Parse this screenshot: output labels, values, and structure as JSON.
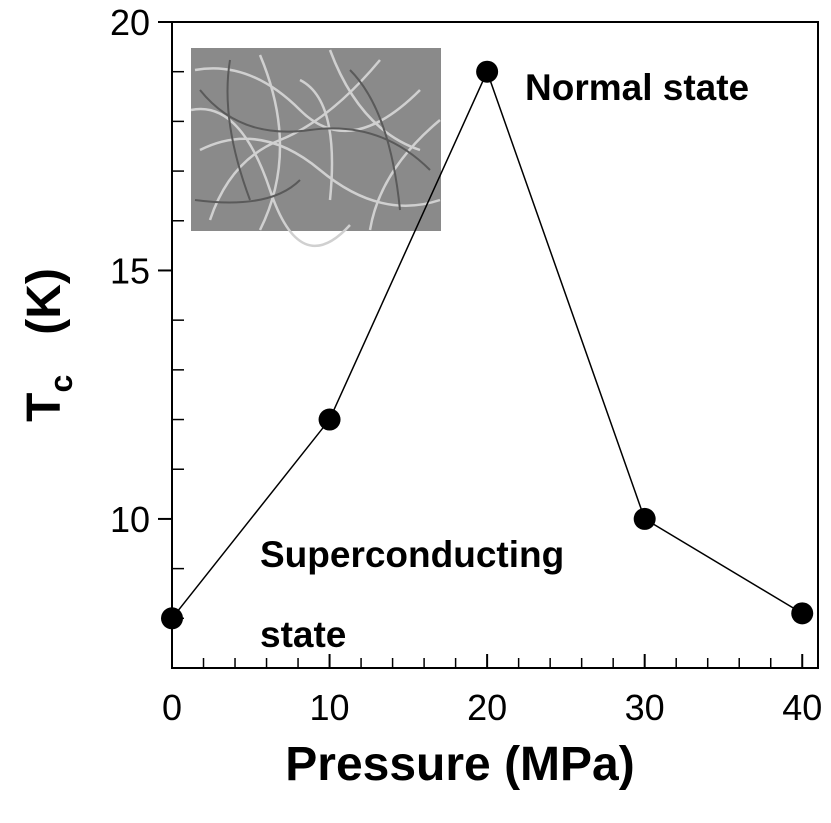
{
  "chart_data": {
    "type": "line",
    "x": [
      0,
      10,
      20,
      30,
      40
    ],
    "values": [
      8,
      12,
      19,
      10,
      8.1
    ],
    "color": "#000000",
    "xlim": [
      0,
      41
    ],
    "xticks": [
      0,
      10,
      20,
      30,
      40
    ],
    "xminorticks": [
      2,
      4,
      6,
      8,
      12,
      14,
      16,
      18,
      22,
      24,
      26,
      28,
      32,
      34,
      36,
      38
    ],
    "ylim": [
      7,
      20
    ],
    "yticks": [
      10,
      15,
      20
    ],
    "yminorticks": [
      8,
      9,
      11,
      12,
      13,
      14,
      16,
      17,
      18,
      19
    ],
    "xlabel": "Pressure (MPa)",
    "ylabel": {
      "main": "T",
      "sub": "c",
      "unit": "(K)"
    },
    "annotations": {
      "normal": "Normal state",
      "superconducting": [
        "Superconducting",
        "state"
      ]
    }
  }
}
